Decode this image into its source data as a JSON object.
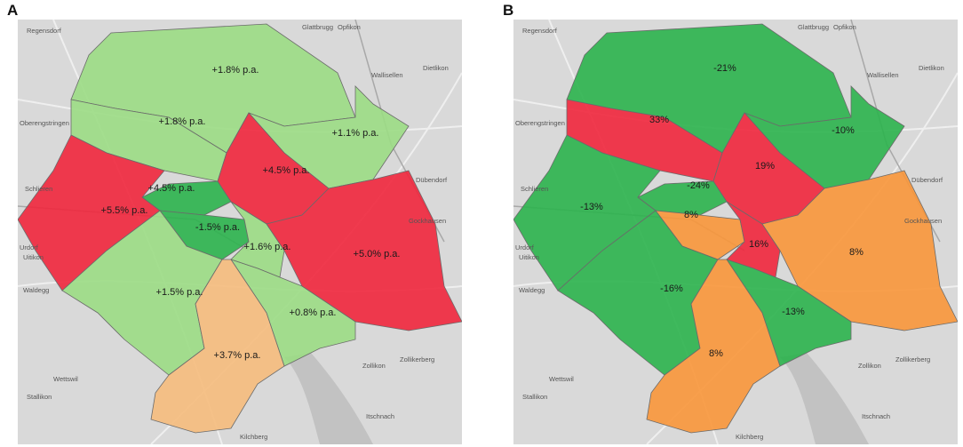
{
  "colors": {
    "dark_green": "#2bb24c",
    "light_green": "#9bdc84",
    "red": "#f0263c",
    "orange": "#f8963a",
    "light_orange": "#f5bb7c",
    "basemap": "#d9d9d9",
    "lake": "#c2c2c2"
  },
  "panel_a": {
    "letter": "A",
    "labels": [
      {
        "id": "a-north",
        "text": "+1.8% p.a."
      },
      {
        "id": "a-hongg",
        "text": "+1.8% p.a."
      },
      {
        "id": "a-schwamendingen",
        "text": "+1.1% p.a."
      },
      {
        "id": "a-unterstrass",
        "text": "+4.5% p.a."
      },
      {
        "id": "a-wipkingen",
        "text": "+4.5% p.a."
      },
      {
        "id": "a-altstetten",
        "text": "+5.5% p.a."
      },
      {
        "id": "a-aussersihl",
        "text": "-1.5% p.a."
      },
      {
        "id": "a-center",
        "text": "+1.6% p.a."
      },
      {
        "id": "a-east",
        "text": "+5.0% p.a."
      },
      {
        "id": "a-wiedikon",
        "text": "+1.5% p.a."
      },
      {
        "id": "a-riesbach",
        "text": "+0.8% p.a."
      },
      {
        "id": "a-enge",
        "text": "+3.7% p.a."
      }
    ]
  },
  "panel_b": {
    "letter": "B",
    "labels": [
      {
        "id": "b-north",
        "text": "-21%"
      },
      {
        "id": "b-hongg",
        "text": "33%"
      },
      {
        "id": "b-schwamendingen",
        "text": "-10%"
      },
      {
        "id": "b-unterstrass",
        "text": "19%"
      },
      {
        "id": "b-wipkingen",
        "text": "-24%"
      },
      {
        "id": "b-altstetten",
        "text": "-13%"
      },
      {
        "id": "b-aussersihl",
        "text": "8%"
      },
      {
        "id": "b-center",
        "text": "16%"
      },
      {
        "id": "b-east",
        "text": "8%"
      },
      {
        "id": "b-wiedikon",
        "text": "-16%"
      },
      {
        "id": "b-riesbach",
        "text": "-13%"
      },
      {
        "id": "b-enge",
        "text": "8%"
      }
    ]
  },
  "places": [
    "Regensdorf",
    "Glattbrugg",
    "Opfikon",
    "Wallisellen",
    "Dietlikon",
    "Oberengstringen",
    "Dübendorf",
    "Gockhausen",
    "Urdorf",
    "Uitikon",
    "Waldegg",
    "Zollikon",
    "Zollikerberg",
    "Itschnach",
    "Stallikon",
    "Kilchberg",
    "Wettswil",
    "Schlieren"
  ],
  "fills_a": {
    "north": "light_green",
    "hongg": "light_green",
    "schwamendingen": "light_green",
    "unterstrass": "red",
    "wipkingen": "dark_green",
    "altstetten": "red",
    "aussersihl": "dark_green",
    "center": "light_green",
    "east": "red",
    "wiedikon": "light_green",
    "riesbach": "light_green",
    "enge": "light_orange"
  },
  "fills_b": {
    "north": "dark_green",
    "hongg": "red",
    "schwamendingen": "dark_green",
    "unterstrass": "red",
    "wipkingen": "dark_green",
    "altstetten": "dark_green",
    "aussersihl": "orange",
    "center": "red",
    "east": "orange",
    "wiedikon": "dark_green",
    "riesbach": "dark_green",
    "enge": "orange"
  }
}
